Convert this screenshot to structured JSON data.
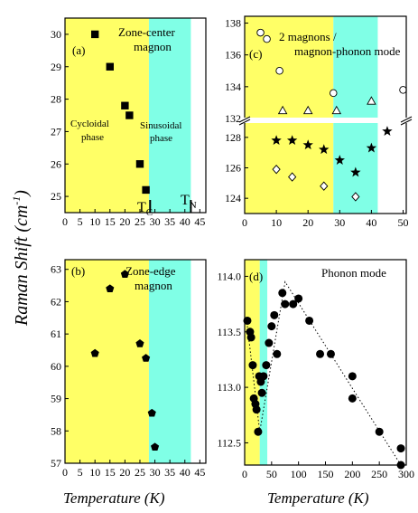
{
  "figure": {
    "ylabel": "Raman Shift (cm",
    "ylabel_sup": "-1",
    "ylabel_close": ")",
    "xlabel_left": "Temperature (K)",
    "xlabel_right": "Temperature (K)"
  },
  "colors": {
    "cycloidal": "#ffff66",
    "sinusoidal": "#80ffe6",
    "marker": "#000000"
  },
  "chart_data": [
    {
      "id": "a",
      "type": "scatter",
      "panel_label": "(a)",
      "annotation": [
        "Zone-center",
        "magnon"
      ],
      "region_labels": {
        "cycloidal": [
          "Cycloidal",
          "phase"
        ],
        "sinusoidal": [
          "Sinusoidal",
          "phase"
        ]
      },
      "transition_labels": {
        "tc": "T",
        "tc_sub": "C",
        "tn": "T",
        "tn_sub": "N"
      },
      "transitions": {
        "tc": 27.5,
        "tn": 42
      },
      "regions": {
        "cycloidal": [
          0,
          28
        ],
        "sinusoidal": [
          28,
          42
        ]
      },
      "xlim": [
        0,
        47
      ],
      "ylim": [
        24.5,
        30.5
      ],
      "xticks": [
        "0",
        "5",
        "10",
        "15",
        "20",
        "25",
        "30",
        "35",
        "40",
        "45"
      ],
      "yticks": [
        "25",
        "26",
        "27",
        "28",
        "29",
        "30"
      ],
      "series": [
        {
          "marker": "square",
          "x": [
            10,
            15,
            20,
            21.5,
            25,
            27
          ],
          "y": [
            30.0,
            29.0,
            27.8,
            27.5,
            26.0,
            25.2
          ]
        }
      ]
    },
    {
      "id": "b",
      "type": "scatter",
      "panel_label": "(b)",
      "annotation": [
        "Zone-edge",
        "magnon"
      ],
      "regions": {
        "cycloidal": [
          0,
          28
        ],
        "sinusoidal": [
          28,
          42
        ]
      },
      "xlim": [
        0,
        47
      ],
      "ylim": [
        57,
        63.3
      ],
      "xticks": [
        "0",
        "5",
        "10",
        "15",
        "20",
        "25",
        "30",
        "35",
        "40",
        "45"
      ],
      "yticks": [
        "57",
        "58",
        "59",
        "60",
        "61",
        "62",
        "63"
      ],
      "series": [
        {
          "marker": "pentagon",
          "x": [
            10,
            15,
            20,
            25,
            27,
            29,
            30
          ],
          "y": [
            60.4,
            62.4,
            62.85,
            60.7,
            60.25,
            58.55,
            57.5
          ]
        }
      ]
    },
    {
      "id": "c",
      "type": "scatter",
      "panel_label": "(c)",
      "annotation": [
        "2 magnons /",
        "magnon-phonon mode"
      ],
      "regions": {
        "cycloidal": [
          0,
          28
        ],
        "sinusoidal": [
          28,
          42
        ]
      },
      "xlim": [
        0,
        51
      ],
      "ylim_upper": [
        132,
        138.2
      ],
      "ylim_lower": [
        123,
        129
      ],
      "xticks": [
        "0",
        "10",
        "20",
        "30",
        "40",
        "50"
      ],
      "yticks_upper": [
        "132",
        "134",
        "136",
        "138"
      ],
      "yticks_lower": [
        "124",
        "126",
        "128"
      ],
      "series": [
        {
          "marker": "circle-open",
          "x": [
            5,
            7,
            11,
            28,
            50
          ],
          "y": [
            137.4,
            137.0,
            135.0,
            133.6,
            133.8
          ]
        },
        {
          "marker": "triangle-open",
          "x": [
            12,
            20,
            29,
            40
          ],
          "y": [
            132.5,
            132.5,
            132.5,
            133.1
          ]
        },
        {
          "marker": "star",
          "x": [
            10,
            15,
            20,
            25,
            30,
            35,
            40,
            45
          ],
          "y": [
            127.8,
            127.8,
            127.5,
            127.2,
            126.5,
            125.7,
            127.3,
            128.4
          ]
        },
        {
          "marker": "diamond-open",
          "x": [
            10,
            15,
            25,
            35
          ],
          "y": [
            125.9,
            125.4,
            124.8,
            124.1
          ]
        }
      ]
    },
    {
      "id": "d",
      "type": "scatter",
      "panel_label": "(d)",
      "annotation": [
        "Phonon mode"
      ],
      "regions": {
        "cycloidal": [
          0,
          28
        ],
        "sinusoidal": [
          28,
          42
        ]
      },
      "xlim": [
        0,
        300
      ],
      "ylim": [
        112.3,
        114.15
      ],
      "xticks": [
        "0",
        "50",
        "100",
        "150",
        "200",
        "250",
        "300"
      ],
      "yticks": [
        "112.5",
        "113.0",
        "113.5",
        "114.0"
      ],
      "series": [
        {
          "marker": "circle",
          "x": [
            5,
            10,
            12,
            15,
            17,
            20,
            22,
            25,
            27,
            30,
            32,
            35,
            40,
            45,
            50,
            55,
            60,
            70,
            75,
            90,
            100,
            120,
            140,
            160,
            200,
            200,
            250,
            290,
            290
          ],
          "y": [
            113.6,
            113.5,
            113.45,
            113.2,
            112.9,
            112.85,
            112.8,
            112.6,
            113.1,
            113.05,
            112.95,
            113.1,
            113.2,
            113.4,
            113.55,
            113.65,
            113.3,
            113.85,
            113.75,
            113.75,
            113.8,
            113.6,
            113.3,
            113.3,
            113.1,
            112.9,
            112.6,
            112.45,
            112.3
          ]
        }
      ],
      "guide_lines": [
        {
          "x": [
            5,
            28,
            75,
            290
          ],
          "y": [
            113.55,
            112.6,
            113.95,
            112.3
          ]
        }
      ]
    }
  ]
}
